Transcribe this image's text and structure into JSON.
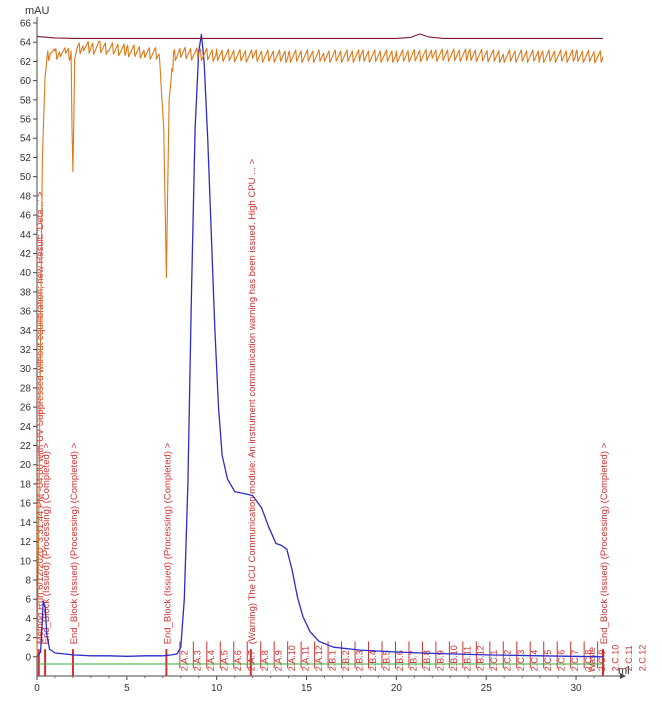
{
  "chart_data": {
    "type": "line",
    "y_unit": "mAU",
    "x_unit": "ml",
    "xlim": [
      0,
      32
    ],
    "ylim": [
      -2,
      66
    ],
    "y_ticks": [
      0,
      2,
      4,
      6,
      8,
      10,
      12,
      14,
      16,
      18,
      20,
      22,
      24,
      26,
      28,
      30,
      32,
      34,
      36,
      38,
      40,
      42,
      44,
      46,
      48,
      50,
      52,
      54,
      56,
      58,
      60,
      62,
      64,
      66
    ],
    "x_ticks": [
      0,
      5,
      10,
      15,
      20,
      25,
      30
    ],
    "series": [
      {
        "color": "#2c2cc8",
        "x": [
          0,
          0.2,
          0.35,
          0.45,
          0.55,
          0.7,
          1.0,
          1.5,
          2,
          3,
          4,
          5,
          6,
          7,
          7.5,
          7.8,
          8.0,
          8.2,
          8.4,
          8.6,
          8.8,
          9.0,
          9.15,
          9.3,
          9.5,
          9.7,
          9.9,
          10.1,
          10.3,
          10.6,
          11.0,
          11.5,
          12.0,
          12.5,
          12.9,
          13.3,
          13.6,
          13.9,
          14.2,
          14.5,
          14.8,
          15.2,
          15.7,
          16.5,
          18,
          20,
          22,
          25,
          28,
          31.5
        ],
        "y": [
          0,
          0.5,
          5.8,
          5.2,
          2.2,
          0.8,
          0.4,
          0.3,
          0.2,
          0.1,
          0.1,
          0.05,
          0.1,
          0.1,
          0.2,
          0.3,
          1.0,
          6,
          18,
          38,
          55,
          63,
          64.8,
          62,
          54,
          44,
          34,
          26,
          21,
          18.5,
          17.2,
          17.0,
          16.8,
          15.5,
          13.5,
          11.8,
          11.6,
          11.2,
          9.0,
          6.2,
          4.2,
          2.6,
          1.6,
          1.0,
          0.7,
          0.5,
          0.35,
          0.2,
          0.1,
          0.0
        ]
      },
      {
        "color": "#e07818",
        "x": [
          0,
          0.1,
          0.2,
          0.3,
          0.45,
          0.6,
          0.8,
          1.0,
          1.3,
          1.6,
          1.9,
          1.95,
          2.0,
          2.05,
          2.1,
          2.3,
          2.6,
          3.0,
          3.5,
          4,
          5,
          6,
          6.8,
          7.05,
          7.15,
          7.2,
          7.25,
          7.35,
          7.6,
          8,
          9,
          10,
          12,
          14,
          16,
          18,
          20,
          22,
          24,
          26,
          28,
          30,
          31.5
        ],
        "y": [
          0,
          14,
          34,
          52,
          60.5,
          62.5,
          63.2,
          62.8,
          63.1,
          62.9,
          62.6,
          55,
          50.5,
          56,
          62.4,
          63.3,
          63.6,
          63.4,
          63.5,
          63.4,
          63.2,
          63.0,
          62.8,
          55,
          45,
          39.5,
          46,
          58,
          62.6,
          62.9,
          62.8,
          62.7,
          62.6,
          62.6,
          62.6,
          62.6,
          62.6,
          62.7,
          62.7,
          62.6,
          62.6,
          62.6,
          62.5
        ]
      },
      {
        "color": "#7a1a2a",
        "x": [
          0,
          1,
          2,
          5,
          10,
          15,
          20,
          20.8,
          21.3,
          21.8,
          22.6,
          25,
          30,
          31.5
        ],
        "y": [
          64.6,
          64.45,
          64.4,
          64.4,
          64.4,
          64.4,
          64.4,
          64.5,
          64.85,
          64.55,
          64.4,
          64.4,
          64.4,
          64.4
        ]
      },
      {
        "color": "#3aa83a",
        "x": [
          0,
          31.5
        ],
        "y": [
          -0.75,
          -0.75
        ]
      }
    ],
    "fractions": {
      "labels": [
        "2.A.2",
        "2.A.3",
        "2.A.4",
        "2.A.5",
        "2.A.6",
        "2.A.7",
        "2.A.8",
        "2.A.9",
        "2.A.10",
        "2.A.11",
        "2.A.12",
        "2.B.1",
        "2.B.2",
        "2.B.3",
        "2.B.4",
        "2.B.5",
        "2.B.6",
        "2.B.7",
        "2.B.8",
        "2.B.9",
        "2.B.10",
        "2.B.11",
        "2.B.12",
        "2.C.1",
        "2.C.2",
        "2.C.3",
        "2.C.4",
        "2.C.5",
        "2.C.6",
        "2.C.7",
        "2.C.8",
        "2.C.9",
        "2.C.10",
        "2.C.11",
        "2.C.12"
      ],
      "start": 7.95,
      "step": 0.75,
      "end": 31.6,
      "last_label": "Waste"
    },
    "events": [
      {
        "x": 0.1,
        "label": "Method Run 6/12/2020, 3:31:44 PM -04:00 with UV Suppressed without equilibration; new Result: 'Deta...'"
      },
      {
        "x": 0.45,
        "label": "End_Block (Issued) (Processing) (Completed)"
      },
      {
        "x": 2.0,
        "label": "End_Block (Issued) (Processing) (Completed)"
      },
      {
        "x": 7.2,
        "label": "End_Block (Issued) (Processing) (Completed)"
      },
      {
        "x": 11.9,
        "label": "(Warning) The ICU Communication module: An instrument communication warning has been issued. High CPU ..."
      },
      {
        "x": 31.5,
        "label": "End_Block (Issued) (Processing) (Completed)"
      }
    ]
  }
}
